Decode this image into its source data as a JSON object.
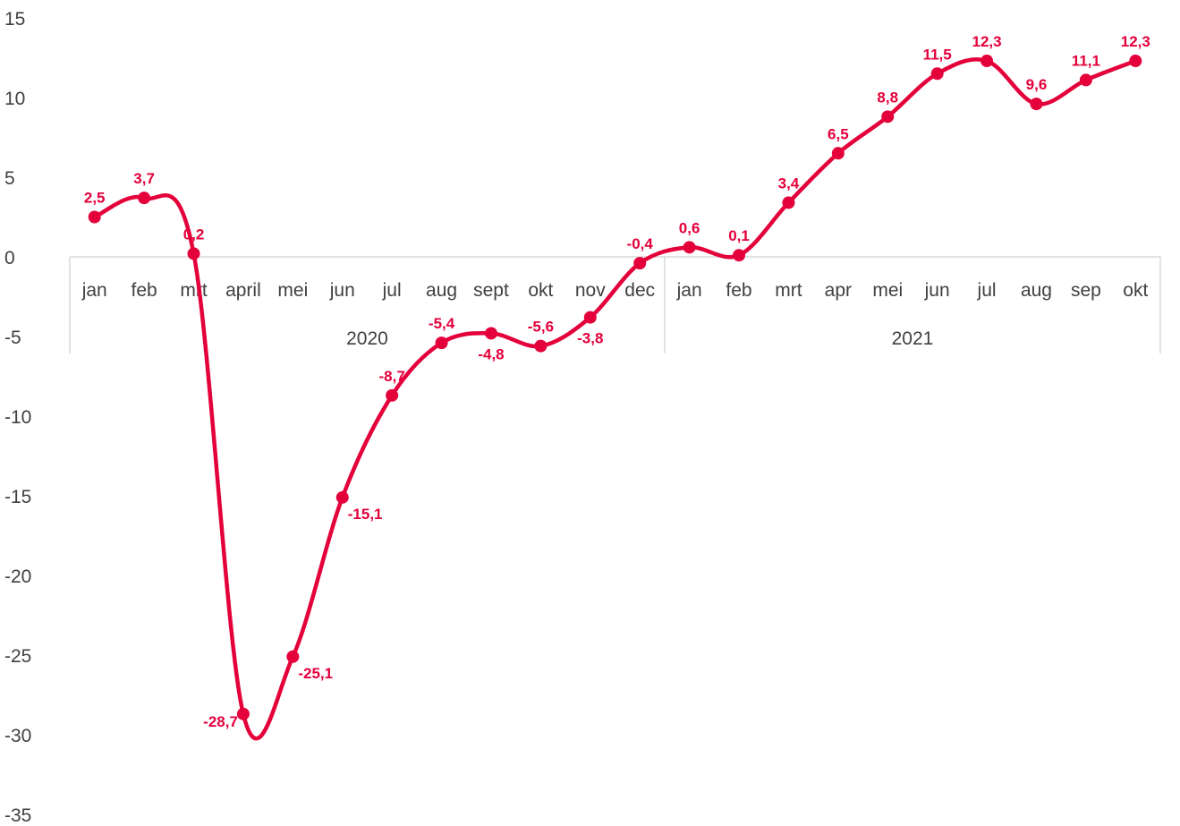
{
  "chart_data": {
    "type": "line",
    "title": "",
    "xlabel": "",
    "ylabel": "",
    "ylim": [
      -35,
      15
    ],
    "yticks": [
      "15",
      "10",
      "5",
      "0",
      "-5",
      "-10",
      "-15",
      "-20",
      "-25",
      "-30",
      "-35"
    ],
    "yticks_values": [
      15,
      10,
      5,
      0,
      -5,
      -10,
      -15,
      -20,
      -25,
      -30,
      -35
    ],
    "grid": false,
    "legend": "none",
    "line_color": "#e4003a",
    "axis_color": "#d9d9d9",
    "categories": [
      "jan",
      "feb",
      "mrt",
      "april",
      "mei",
      "jun",
      "jul",
      "aug",
      "sept",
      "okt",
      "nov",
      "dec",
      "jan",
      "feb",
      "mrt",
      "apr",
      "mei",
      "jun",
      "jul",
      "aug",
      "sep",
      "okt"
    ],
    "groups": [
      {
        "label": "2020",
        "count": 12
      },
      {
        "label": "2021",
        "count": 10
      }
    ],
    "series": [
      {
        "values": [
          2.5,
          3.7,
          0.2,
          -28.7,
          -25.1,
          -15.1,
          -8.7,
          -5.4,
          -4.8,
          -5.6,
          -3.8,
          -0.4,
          0.6,
          0.1,
          3.4,
          6.5,
          8.8,
          11.5,
          12.3,
          9.6,
          11.1,
          12.3
        ],
        "data_labels": [
          "2,5",
          "3,7",
          "0,2",
          "-28,7",
          "-25,1",
          "-15,1",
          "-8,7",
          "-5,4",
          "-4,8",
          "-5,6",
          "-3,8",
          "-0,4",
          "0,6",
          "0,1",
          "3,4",
          "6,5",
          "8,8",
          "11,5",
          "12,3",
          "9,6",
          "11,1",
          "12,3"
        ],
        "label_positions": [
          "above",
          "above",
          "above",
          "left",
          "right",
          "right",
          "above",
          "above",
          "below",
          "above",
          "below",
          "above",
          "above",
          "above",
          "above",
          "above",
          "above",
          "above",
          "above",
          "above",
          "above",
          "above"
        ]
      }
    ]
  }
}
